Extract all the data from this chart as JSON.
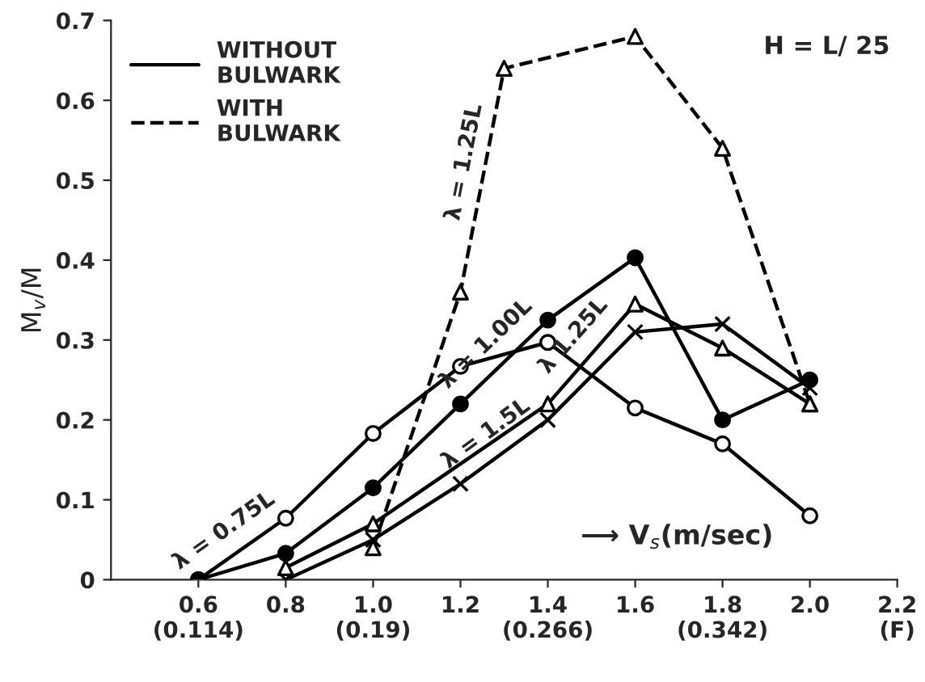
{
  "chart_data": {
    "type": "line",
    "ylabel": "M$_{v}$/M",
    "xlabel": "⟶ V$_{s}$(m/sec)",
    "annotations": [
      "WITHOUT\nBULWARK",
      "WITH\nBULWARK",
      "H = L/ 25"
    ],
    "xlim": [
      0.4,
      2.2
    ],
    "xticks": [
      {
        "value": 0.6,
        "label": "0.6\n(0.114)"
      },
      0.8,
      {
        "value": 1.0,
        "label": "1.0\n(0.19)"
      },
      1.2,
      {
        "value": 1.4,
        "label": "1.4\n(0.266)"
      },
      1.6,
      {
        "value": 1.8,
        "label": "1.8\n(0.342)"
      },
      {
        "value": 2.0,
        "label": "2.0"
      },
      {
        "value": 2.2,
        "label": "2.2\n(F)"
      }
    ],
    "ylim": [
      0,
      0.7
    ],
    "yticks": [
      0,
      0.1,
      0.2,
      0.3,
      0.4,
      0.5,
      0.6,
      0.7
    ],
    "grid": false,
    "series": [
      {
        "name": "λ = 0.75L",
        "color": "#000000",
        "marker": "circle",
        "line_style": "solid",
        "x": [
          0.6,
          0.8,
          1.0,
          1.2,
          1.4,
          1.6,
          1.8,
          2.0
        ],
        "values": [
          0,
          0.077,
          0.183,
          0.267,
          0.297,
          0.215,
          0.17,
          0.08
        ]
      },
      {
        "name": "λ = 1.00L",
        "color": "#000000",
        "marker": "circle",
        "line_style": "solid",
        "x": [
          0.6,
          0.8,
          1.0,
          1.2,
          1.4,
          1.6,
          1.8,
          2.0
        ],
        "values": [
          0,
          0.033,
          0.115,
          0.22,
          0.325,
          0.403,
          0.2,
          0.25
        ]
      },
      {
        "name": "λ 1.25L",
        "color": "#000000",
        "marker": "triangle",
        "line_style": "solid",
        "x": [
          0.8,
          1.0,
          1.4,
          1.6,
          1.8,
          2.0
        ],
        "values": [
          0.015,
          0.07,
          0.22,
          0.345,
          0.29,
          0.22
        ]
      },
      {
        "name": "λ = 1.5L",
        "color": "#000000",
        "marker": "cross",
        "line_style": "solid",
        "x": [
          0.8,
          1.0,
          1.2,
          1.4,
          1.6,
          1.8,
          2.0
        ],
        "values": [
          0,
          0.05,
          0.12,
          0.2,
          0.31,
          0.32,
          0.24
        ]
      },
      {
        "name": "λ = 1.25L",
        "color": "#000000",
        "marker": "triangle",
        "line_style": "dashed",
        "x": [
          1.0,
          1.2,
          1.3,
          1.6,
          1.8,
          2.0
        ],
        "values": [
          0.04,
          0.36,
          0.64,
          0.68,
          0.54,
          0.22
        ]
      }
    ]
  }
}
